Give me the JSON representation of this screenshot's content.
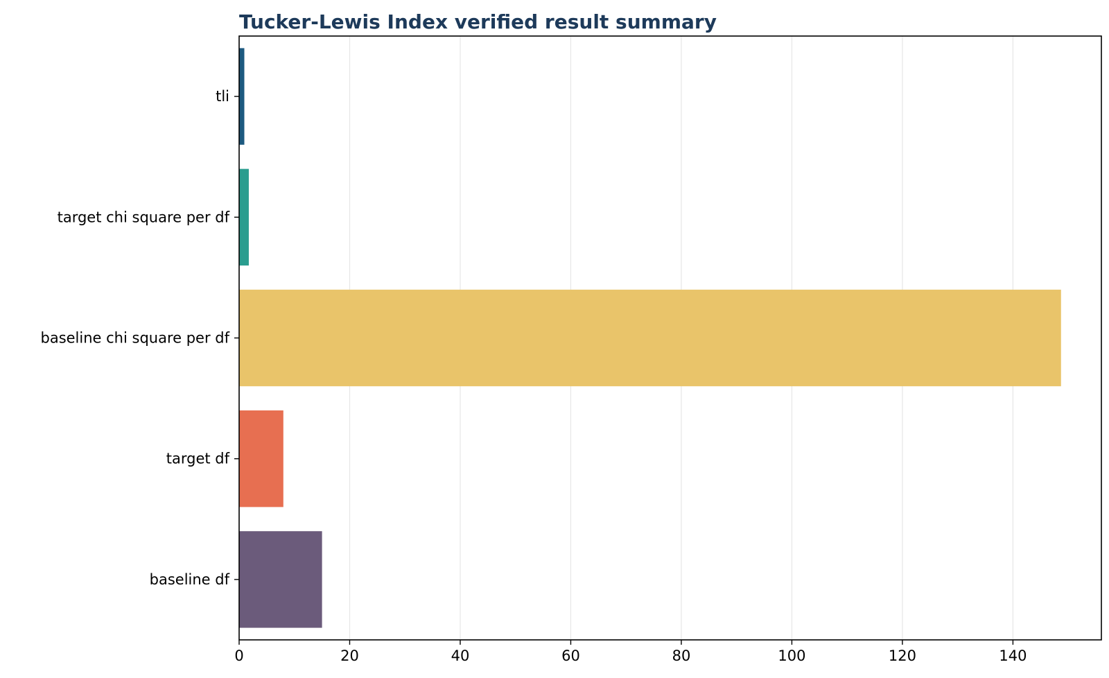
{
  "chart_data": {
    "type": "bar",
    "orientation": "horizontal",
    "title": "Tucker-Lewis Index verified result summary",
    "xlabel": "",
    "ylabel": "",
    "categories": [
      "tli",
      "target chi square per df",
      "baseline chi square per df",
      "target df",
      "baseline df"
    ],
    "values": [
      0.94,
      1.75,
      148.7,
      8,
      15
    ],
    "colors": [
      "#1d5a80",
      "#2a9d8f",
      "#e9c46a",
      "#e76f51",
      "#6b5b7b"
    ],
    "xlim": [
      0,
      156
    ],
    "xticks": [
      0,
      20,
      40,
      60,
      80,
      100,
      120,
      140
    ],
    "grid": "vertical",
    "legend": "none",
    "title_color": "#1d3a5a"
  }
}
